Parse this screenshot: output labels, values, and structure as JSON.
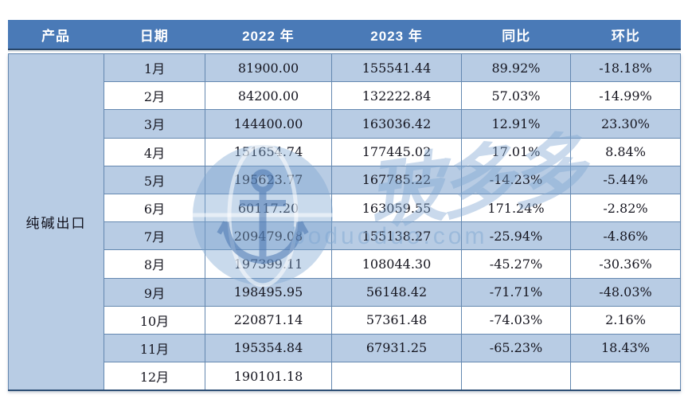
{
  "table": {
    "product": "纯碱出口",
    "columns": [
      "产品",
      "日期",
      "2022 年",
      "2023 年",
      "同比",
      "环比"
    ],
    "rows": [
      {
        "month": "1月",
        "y2022": "81900.00",
        "y2023": "155541.44",
        "yoy": "89.92%",
        "mom": "-18.18%"
      },
      {
        "month": "2月",
        "y2022": "84200.00",
        "y2023": "132222.84",
        "yoy": "57.03%",
        "mom": "-14.99%"
      },
      {
        "month": "3月",
        "y2022": "144400.00",
        "y2023": "163036.42",
        "yoy": "12.91%",
        "mom": "23.30%"
      },
      {
        "month": "4月",
        "y2022": "151654.74",
        "y2023": "177445.02",
        "yoy": "17.01%",
        "mom": "8.84%"
      },
      {
        "month": "5月",
        "y2022": "195623.77",
        "y2023": "167785.22",
        "yoy": "-14.23%",
        "mom": "-5.44%"
      },
      {
        "month": "6月",
        "y2022": "60117.20",
        "y2023": "163059.55",
        "yoy": "171.24%",
        "mom": "-2.82%"
      },
      {
        "month": "7月",
        "y2022": "209479.08",
        "y2023": "155138.27",
        "yoy": "-25.94%",
        "mom": "-4.86%"
      },
      {
        "month": "8月",
        "y2022": "197399.11",
        "y2023": "108044.30",
        "yoy": "-45.27%",
        "mom": "-30.36%"
      },
      {
        "month": "9月",
        "y2022": "198495.95",
        "y2023": "56148.42",
        "yoy": "-71.71%",
        "mom": "-48.03%"
      },
      {
        "month": "10月",
        "y2022": "220871.14",
        "y2023": "57361.48",
        "yoy": "-74.03%",
        "mom": "2.16%"
      },
      {
        "month": "11月",
        "y2022": "195354.84",
        "y2023": "67931.25",
        "yoy": "-65.23%",
        "mom": "18.43%"
      },
      {
        "month": "12月",
        "y2022": "190101.18",
        "y2023": "",
        "yoy": "",
        "mom": ""
      }
    ]
  },
  "chart_data": {
    "type": "table",
    "title": "纯碱出口月度数据表",
    "columns": [
      "产品",
      "日期",
      "2022 年",
      "2023 年",
      "同比",
      "环比"
    ],
    "product": "纯碱出口",
    "rows": [
      [
        "1月",
        81900.0,
        155541.44,
        "89.92%",
        "-18.18%"
      ],
      [
        "2月",
        84200.0,
        132222.84,
        "57.03%",
        "-14.99%"
      ],
      [
        "3月",
        144400.0,
        163036.42,
        "12.91%",
        "23.30%"
      ],
      [
        "4月",
        151654.74,
        177445.02,
        "17.01%",
        "8.84%"
      ],
      [
        "5月",
        195623.77,
        167785.22,
        "-14.23%",
        "-5.44%"
      ],
      [
        "6月",
        60117.2,
        163059.55,
        "171.24%",
        "-2.82%"
      ],
      [
        "7月",
        209479.08,
        155138.27,
        "-25.94%",
        "-4.86%"
      ],
      [
        "8月",
        197399.11,
        108044.3,
        "-45.27%",
        "-30.36%"
      ],
      [
        "9月",
        198495.95,
        56148.42,
        "-71.71%",
        "-48.03%"
      ],
      [
        "10月",
        220871.14,
        57361.48,
        "-74.03%",
        "2.16%"
      ],
      [
        "11月",
        195354.84,
        67931.25,
        "-65.23%",
        "18.43%"
      ],
      [
        "12月",
        190101.18,
        null,
        "",
        ""
      ]
    ]
  },
  "watermark": {
    "brand": "玻多多",
    "domain": "boduoduo.com"
  },
  "colors": {
    "header_bg": "#4a7ab7",
    "header_text": "#ffffff",
    "row_alt_bg": "#b8cce4",
    "row_bg": "#ffffff",
    "cell_border": "#6488b0",
    "dark_rule": "#284669",
    "body_text": "#15151f",
    "watermark_blue": "#7fa7d2"
  }
}
